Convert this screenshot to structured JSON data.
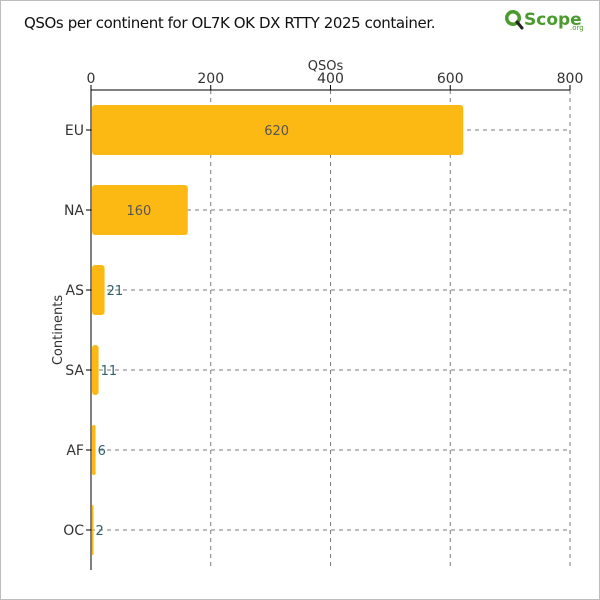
{
  "header": {
    "title": "QSOs per continent for OL7K OK DX RTTY 2025 container.",
    "logo_text": "Scope",
    "logo_suffix": ".org",
    "logo_icon": "magnifier-q-icon"
  },
  "colors": {
    "bar": "#fdb913",
    "grid": "#7a7a7a",
    "axis": "#000000",
    "value_inside": "#555555",
    "value_outside": "#2f5f6f",
    "logo_green": "#4a9a2e"
  },
  "chart_data": {
    "type": "bar",
    "orientation": "horizontal",
    "title": "QSOs per continent for OL7K OK DX RTTY 2025 container.",
    "xlabel": "QSOs",
    "ylabel": "Continents",
    "xaxis_position": "top",
    "xlim": [
      0,
      800
    ],
    "xticks": [
      0,
      200,
      400,
      600,
      800
    ],
    "grid": true,
    "categories": [
      "EU",
      "NA",
      "AS",
      "SA",
      "AF",
      "OC"
    ],
    "values": [
      620,
      160,
      21,
      11,
      6,
      2
    ]
  }
}
